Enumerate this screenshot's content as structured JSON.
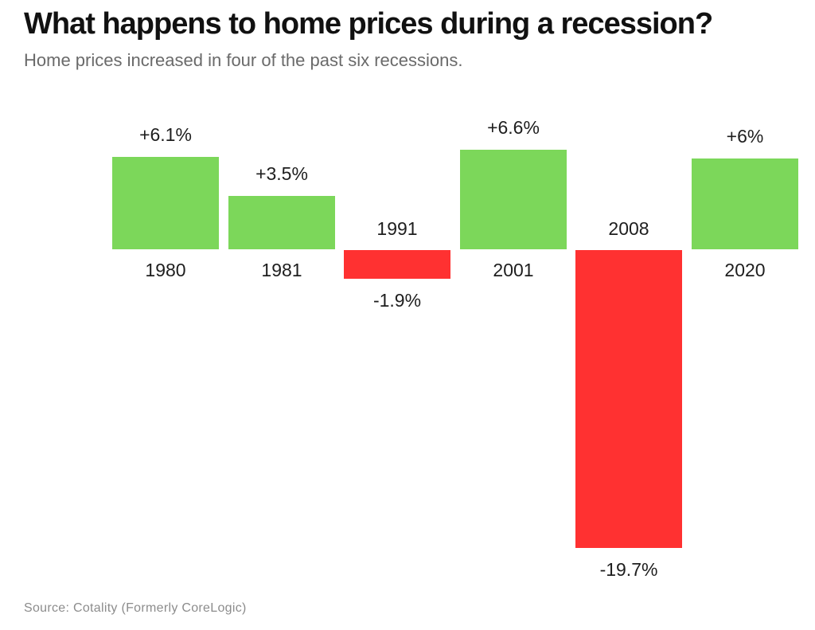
{
  "chart_data": {
    "type": "bar",
    "title": "What happens to home prices during a recession?",
    "subtitle": "Home prices increased in four of the past six recessions.",
    "source": "Source: Cotality (Formerly CoreLogic)",
    "categories": [
      "1980",
      "1981",
      "1991",
      "2001",
      "2008",
      "2020"
    ],
    "values": [
      6.1,
      3.5,
      -1.9,
      6.6,
      -19.7,
      6
    ],
    "value_labels": [
      "+6.1%",
      "+3.5%",
      "-1.9%",
      "+6.6%",
      "-19.7%",
      "+6%"
    ],
    "unit": "percent change in home prices",
    "ylim": [
      -19.7,
      6.6
    ],
    "positive_color": "#7cd75a",
    "negative_color": "#ff3131",
    "label_color": "#1e1e1e",
    "grid": false,
    "legend": false,
    "axes_visible": false,
    "layout_hint": "zero-baseline bar chart, positive bars green above baseline with year labels below baseline, negative bars red below baseline with year labels above baseline"
  }
}
